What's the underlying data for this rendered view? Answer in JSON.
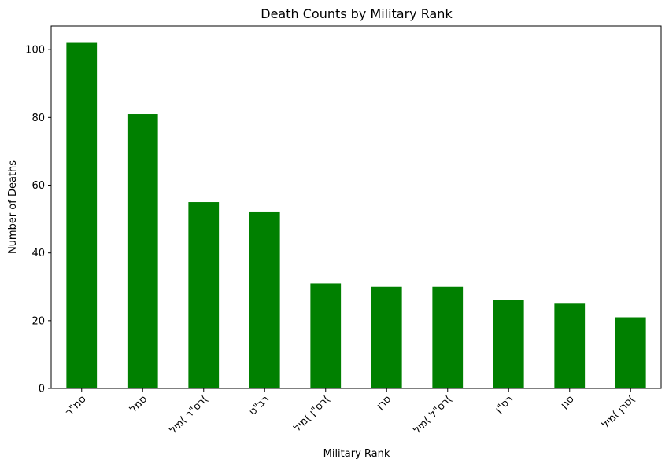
{
  "chart_data": {
    "type": "bar",
    "title": "Death Counts by Military Rank",
    "xlabel": "Military Rank",
    "ylabel": "Number of Deaths",
    "categories": [
      "סמ\"ר",
      "סמל",
      "רס\"ר )מיל(",
      "רב\"ט",
      "רס\"ן )מיל(",
      "סרן",
      "רס\"ל )מיל(",
      "רס\"ן",
      "סגן",
      "סרן )מיל("
    ],
    "values": [
      102,
      81,
      55,
      52,
      31,
      30,
      30,
      26,
      25,
      21
    ],
    "ylim": [
      0,
      107
    ],
    "yticks": [
      0,
      20,
      40,
      60,
      80,
      100
    ],
    "bar_color": "#008000",
    "grid": false,
    "legend": "none"
  }
}
